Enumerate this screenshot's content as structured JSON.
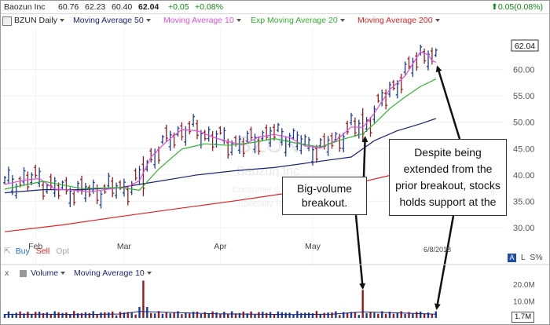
{
  "header": {
    "symbol_name": "Baozun Inc",
    "open": "60.76",
    "high": "62.23",
    "low": "60.40",
    "close": "62.04",
    "change": "+0.05",
    "change_pct": "+0.08%",
    "right_change": "0.05(0.08%)",
    "change_color": "#0a8f0a"
  },
  "legend": {
    "ticker_period": "BZUN Daily",
    "ma50": "Moving Average 50",
    "ma10": "Moving Average 10",
    "ema20": "Exp Moving Average 20",
    "ma200": "Moving Average 200"
  },
  "price_tag": "62.04",
  "watermark": {
    "ticker": "BZUN",
    "company": "Baozun Inc",
    "line3": "Consumer Cyclical",
    "line4": "Specialty Retail"
  },
  "bottom_controls": {
    "buy": "Buy",
    "sell": "Sell",
    "opt": "Opt",
    "log": "L",
    "pct": "S%",
    "auto": "A"
  },
  "date_label": "6/8/2018",
  "volume_legend": {
    "close_x": "x",
    "volume": "Volume",
    "ma": "Moving Average 10",
    "last_volume": "1.7M"
  },
  "callouts": {
    "breakout": "Big-volume breakout.",
    "support": "Despite being extended from the prior breakout, stocks holds support at the"
  },
  "chart_data": {
    "type": "line",
    "title": "BZUN Daily",
    "y_ticks": [
      30,
      35,
      40,
      45,
      50,
      55,
      60
    ],
    "y_range": [
      27,
      68
    ],
    "x_ticks": [
      "Feb",
      "Mar",
      "Apr",
      "May"
    ],
    "volume_ticks": [
      "20.0M",
      "10.0M"
    ],
    "volume_range": [
      0,
      25
    ],
    "series": [
      {
        "name": "Moving Average 50",
        "color": "#1a237e",
        "points": [
          [
            0,
            36.6
          ],
          [
            10,
            37.2
          ],
          [
            20,
            37.2
          ],
          [
            30,
            37.6
          ],
          [
            40,
            38.8
          ],
          [
            50,
            40.0
          ],
          [
            60,
            40.8
          ],
          [
            70,
            41.4
          ],
          [
            80,
            42.4
          ],
          [
            90,
            43.4
          ],
          [
            96,
            46.5
          ],
          [
            102,
            48.4
          ],
          [
            108,
            49.7
          ],
          [
            112,
            50.7
          ]
        ]
      },
      {
        "name": "Moving Average 10",
        "color": "#e64ddf",
        "points": [
          [
            0,
            38.2
          ],
          [
            5,
            39.0
          ],
          [
            9,
            39.3
          ],
          [
            13,
            37.3
          ],
          [
            18,
            37.1
          ],
          [
            22,
            36.8
          ],
          [
            27,
            37.3
          ],
          [
            32,
            37.7
          ],
          [
            35,
            38.9
          ],
          [
            38,
            43.4
          ],
          [
            42,
            46.3
          ],
          [
            46,
            48.6
          ],
          [
            50,
            48.4
          ],
          [
            54,
            47.2
          ],
          [
            58,
            46.3
          ],
          [
            62,
            45.7
          ],
          [
            66,
            47.2
          ],
          [
            70,
            47.7
          ],
          [
            74,
            47.1
          ],
          [
            78,
            45.5
          ],
          [
            82,
            45.1
          ],
          [
            86,
            46.5
          ],
          [
            90,
            49.1
          ],
          [
            93,
            49.0
          ],
          [
            96,
            51.7
          ],
          [
            100,
            56.2
          ],
          [
            104,
            58.8
          ],
          [
            108,
            63.4
          ],
          [
            110,
            62.8
          ],
          [
            111,
            61.7
          ],
          [
            112,
            61.4
          ]
        ]
      },
      {
        "name": "Exp Moving Average 20",
        "color": "#2db52d",
        "points": [
          [
            0,
            37.3
          ],
          [
            10,
            38.8
          ],
          [
            20,
            37.4
          ],
          [
            30,
            37.6
          ],
          [
            35,
            37.1
          ],
          [
            40,
            41.1
          ],
          [
            46,
            44.9
          ],
          [
            52,
            45.9
          ],
          [
            58,
            45.6
          ],
          [
            64,
            46.1
          ],
          [
            70,
            46.9
          ],
          [
            76,
            46.0
          ],
          [
            82,
            45.3
          ],
          [
            88,
            46.8
          ],
          [
            93,
            47.8
          ],
          [
            96,
            49.7
          ],
          [
            100,
            52.6
          ],
          [
            104,
            54.8
          ],
          [
            108,
            56.8
          ],
          [
            112,
            58.2
          ]
        ]
      },
      {
        "name": "Moving Average 200",
        "color": "#e62020",
        "points": [
          [
            0,
            29.2
          ],
          [
            15,
            30.5
          ],
          [
            30,
            32.1
          ],
          [
            45,
            33.6
          ],
          [
            60,
            35.1
          ],
          [
            75,
            36.7
          ],
          [
            90,
            38.2
          ],
          [
            100,
            39.9
          ],
          [
            105,
            40.8
          ],
          [
            112,
            42.1
          ]
        ]
      }
    ],
    "annotation_targets": {
      "breakout_day": 93,
      "support_day": 112
    },
    "volume_ma_points": [
      [
        0,
        2.1
      ],
      [
        10,
        2.2
      ],
      [
        20,
        2.0
      ],
      [
        30,
        2.3
      ],
      [
        35,
        3.8
      ],
      [
        45,
        3.1
      ],
      [
        55,
        2.4
      ],
      [
        65,
        2.2
      ],
      [
        75,
        2.0
      ],
      [
        85,
        2.2
      ],
      [
        93,
        3.6
      ],
      [
        100,
        3.1
      ],
      [
        105,
        2.8
      ],
      [
        112,
        2.2
      ]
    ]
  }
}
